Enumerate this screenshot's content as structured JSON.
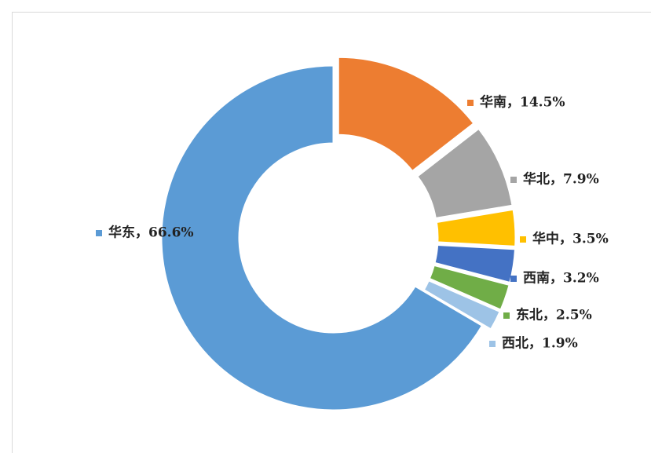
{
  "chart_data": {
    "type": "pie",
    "donut": true,
    "labels": [
      "华南，14.5%",
      "华北，7.9%",
      "华中，3.5%",
      "西南，3.2%",
      "东北，2.5%",
      "西北，1.9%",
      "华东，66.6%"
    ],
    "values": [
      14.5,
      7.9,
      3.5,
      3.2,
      2.5,
      1.9,
      66.6
    ],
    "colors": [
      "#ed7d31",
      "#a5a5a5",
      "#ffc000",
      "#4472c4",
      "#70ad47",
      "#9dc3e6",
      "#5b9bd5"
    ]
  }
}
